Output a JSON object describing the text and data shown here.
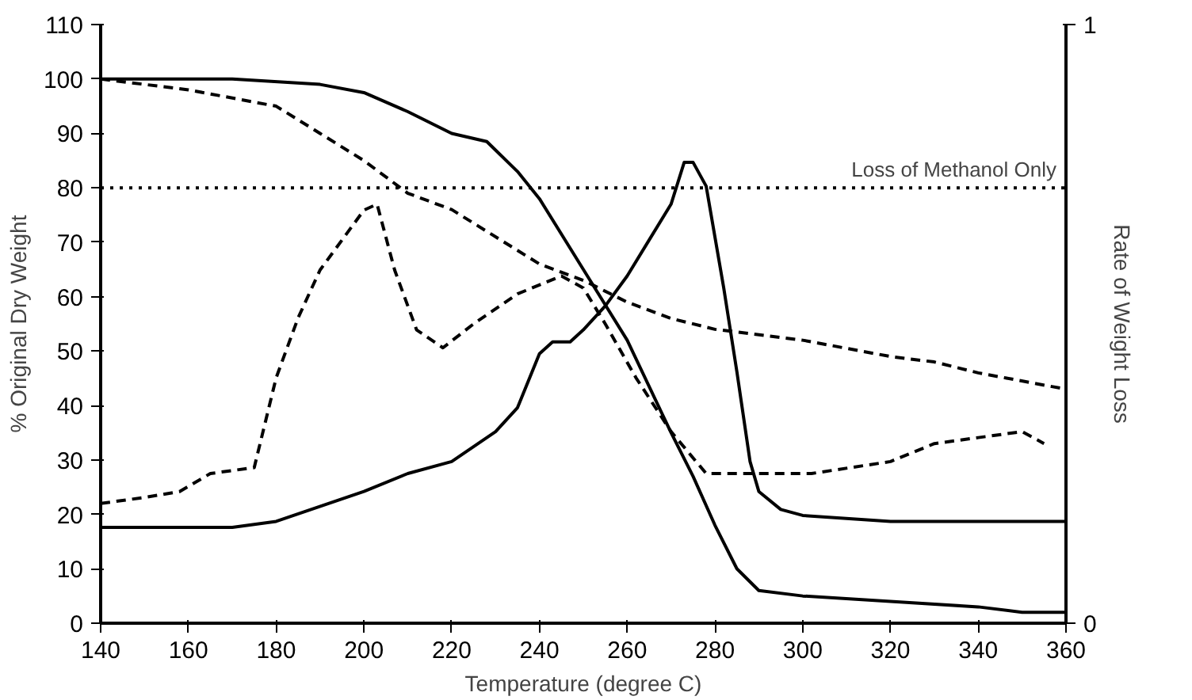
{
  "chart_data": {
    "type": "line",
    "xlabel": "Temperature (degree C)",
    "ylabel": "% Original Dry Weight",
    "y2label": "Rate of Weight Loss",
    "xlim": [
      140,
      360
    ],
    "xticks": [
      140,
      160,
      180,
      200,
      220,
      240,
      260,
      280,
      300,
      320,
      340,
      360
    ],
    "ylim": [
      0,
      110
    ],
    "yticks": [
      0,
      10,
      20,
      30,
      40,
      50,
      60,
      70,
      80,
      90,
      100,
      110
    ],
    "y2lim": [
      0,
      1
    ],
    "y2ticks": [
      0,
      1
    ],
    "grid": false,
    "marker": "none",
    "ref_lines": [
      {
        "axis": "y",
        "value": 80,
        "label": "Loss of Methanol Only",
        "line_style": "dotted",
        "color": "#000000"
      }
    ],
    "series": [
      {
        "color": "#000000",
        "line_style": "solid",
        "x": [
          140,
          170,
          190,
          200,
          210,
          220,
          228,
          235,
          240,
          250,
          260,
          270,
          275,
          280,
          285,
          290,
          300,
          320,
          340,
          350,
          360
        ],
        "values": [
          100,
          100,
          99,
          97.5,
          94,
          90,
          88.5,
          83,
          78,
          65,
          52,
          35,
          27,
          18,
          10,
          6,
          5,
          4,
          3,
          2,
          2
        ]
      },
      {
        "color": "#000000",
        "line_style": "dashed",
        "x": [
          140,
          160,
          180,
          190,
          200,
          210,
          220,
          240,
          250,
          260,
          270,
          280,
          300,
          320,
          330,
          340,
          360
        ],
        "values": [
          100,
          98,
          95,
          90,
          85,
          79,
          76,
          66,
          63,
          59,
          56,
          54,
          52,
          49,
          48,
          46,
          43
        ]
      },
      {
        "color": "#000000",
        "line_style": "solid",
        "axis": "y2",
        "x": [
          140,
          170,
          180,
          200,
          210,
          220,
          230,
          235,
          240,
          243,
          247,
          250,
          255,
          260,
          265,
          270,
          273,
          275,
          278,
          282,
          285,
          288,
          290,
          295,
          300,
          320,
          360
        ],
        "values": [
          0.16,
          0.16,
          0.17,
          0.22,
          0.25,
          0.27,
          0.32,
          0.36,
          0.45,
          0.47,
          0.47,
          0.49,
          0.53,
          0.58,
          0.64,
          0.7,
          0.77,
          0.77,
          0.73,
          0.56,
          0.42,
          0.27,
          0.22,
          0.19,
          0.18,
          0.17,
          0.17
        ]
      },
      {
        "color": "#000000",
        "line_style": "dashed",
        "axis": "y2",
        "x": [
          140,
          150,
          158,
          165,
          175,
          180,
          185,
          190,
          200,
          203,
          207,
          212,
          218,
          225,
          235,
          245,
          250,
          255,
          262,
          270,
          278,
          290,
          302,
          320,
          330,
          340,
          350,
          355
        ],
        "values": [
          0.2,
          0.21,
          0.22,
          0.25,
          0.26,
          0.41,
          0.51,
          0.59,
          0.69,
          0.7,
          0.59,
          0.49,
          0.46,
          0.5,
          0.55,
          0.58,
          0.56,
          0.5,
          0.41,
          0.32,
          0.25,
          0.25,
          0.25,
          0.27,
          0.3,
          0.31,
          0.32,
          0.3
        ]
      }
    ]
  }
}
